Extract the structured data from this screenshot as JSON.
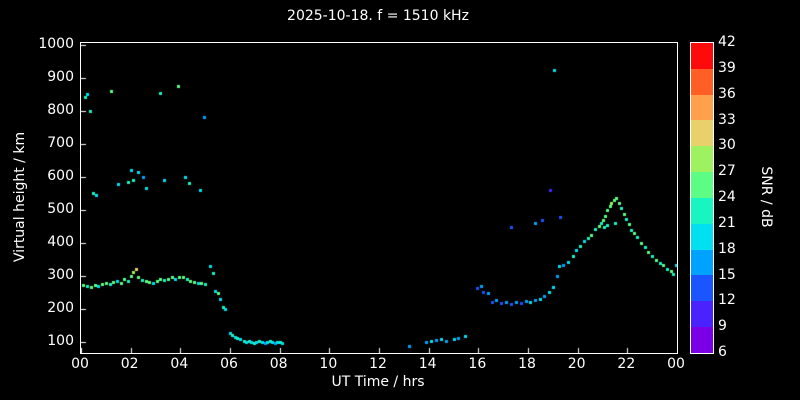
{
  "chart_data": {
    "type": "scatter",
    "title": "2025-10-18. f = 1510 kHz",
    "xlabel": "UT Time / hrs",
    "ylabel": "Virtual height / km",
    "colorbar_label": "SNR / dB",
    "xlim": [
      0,
      24
    ],
    "ylim": [
      66,
      1000
    ],
    "background": "#000000",
    "foreground": "#ffffff",
    "x_tick_values": [
      0,
      2,
      4,
      6,
      8,
      10,
      12,
      14,
      16,
      18,
      20,
      22,
      24
    ],
    "x_tick_labels": [
      "00",
      "02",
      "04",
      "06",
      "08",
      "10",
      "12",
      "14",
      "16",
      "18",
      "20",
      "22",
      "00"
    ],
    "y_tick_values": [
      100,
      200,
      300,
      400,
      500,
      600,
      700,
      800,
      900,
      1000
    ],
    "y_tick_labels": [
      "100",
      "200",
      "300",
      "400",
      "500",
      "600",
      "700",
      "800",
      "900",
      "1000"
    ],
    "colorbar": {
      "min": 6,
      "max": 42,
      "tick_values": [
        6,
        9,
        12,
        15,
        18,
        21,
        24,
        27,
        30,
        33,
        36,
        39,
        42
      ],
      "segment_colors": [
        "#7a00e6",
        "#4a22ff",
        "#1a55ff",
        "#00a2ff",
        "#00e0f0",
        "#17f5c0",
        "#5dfc84",
        "#9ef25f",
        "#e8d06a",
        "#ffa04d",
        "#ff5e24",
        "#ff0a0a"
      ]
    },
    "marker_size": 3,
    "points": [
      [
        0.1,
        272,
        24
      ],
      [
        0.25,
        270,
        21
      ],
      [
        0.4,
        268,
        24
      ],
      [
        0.55,
        274,
        24
      ],
      [
        0.7,
        270,
        19
      ],
      [
        0.85,
        276,
        24
      ],
      [
        1.0,
        280,
        24
      ],
      [
        1.15,
        276,
        21
      ],
      [
        1.3,
        282,
        24
      ],
      [
        1.45,
        284,
        19
      ],
      [
        1.6,
        280,
        24
      ],
      [
        1.75,
        290,
        24
      ],
      [
        1.9,
        286,
        21
      ],
      [
        2.0,
        300,
        24
      ],
      [
        2.1,
        312,
        27
      ],
      [
        2.2,
        322,
        31
      ],
      [
        2.3,
        296,
        24
      ],
      [
        2.45,
        288,
        21
      ],
      [
        2.6,
        284,
        24
      ],
      [
        2.75,
        282,
        24
      ],
      [
        2.9,
        280,
        19
      ],
      [
        3.05,
        286,
        24
      ],
      [
        3.2,
        290,
        24
      ],
      [
        3.35,
        288,
        21
      ],
      [
        3.5,
        292,
        24
      ],
      [
        3.65,
        296,
        24
      ],
      [
        3.8,
        290,
        19
      ],
      [
        3.95,
        298,
        24
      ],
      [
        4.1,
        296,
        24
      ],
      [
        4.25,
        290,
        21
      ],
      [
        4.4,
        286,
        24
      ],
      [
        4.55,
        282,
        24
      ],
      [
        4.7,
        280,
        19
      ],
      [
        4.85,
        278,
        24
      ],
      [
        5.0,
        276,
        21
      ],
      [
        5.2,
        330,
        19
      ],
      [
        5.3,
        308,
        21
      ],
      [
        5.4,
        256,
        19
      ],
      [
        5.5,
        250,
        24
      ],
      [
        5.6,
        230,
        19
      ],
      [
        5.7,
        205,
        21
      ],
      [
        5.8,
        200,
        19
      ],
      [
        6.0,
        128,
        19
      ],
      [
        6.1,
        122,
        21
      ],
      [
        6.2,
        116,
        19
      ],
      [
        6.3,
        112,
        21
      ],
      [
        6.4,
        108,
        19
      ],
      [
        6.55,
        104,
        21
      ],
      [
        6.65,
        100,
        19
      ],
      [
        6.75,
        102,
        21
      ],
      [
        6.85,
        100,
        19
      ],
      [
        6.95,
        98,
        21
      ],
      [
        7.05,
        100,
        19
      ],
      [
        7.15,
        102,
        21
      ],
      [
        7.3,
        100,
        19
      ],
      [
        7.4,
        98,
        15
      ],
      [
        7.5,
        100,
        19
      ],
      [
        7.6,
        102,
        21
      ],
      [
        7.7,
        100,
        19
      ],
      [
        7.8,
        98,
        15
      ],
      [
        7.9,
        100,
        19
      ],
      [
        8.0,
        100,
        21
      ],
      [
        8.1,
        98,
        19
      ],
      [
        13.2,
        88,
        15
      ],
      [
        13.9,
        100,
        15
      ],
      [
        14.1,
        102,
        18
      ],
      [
        14.3,
        106,
        15
      ],
      [
        14.5,
        108,
        18
      ],
      [
        14.7,
        104,
        15
      ],
      [
        15.0,
        110,
        18
      ],
      [
        15.2,
        112,
        15
      ],
      [
        15.45,
        118,
        18
      ],
      [
        15.95,
        265,
        12
      ],
      [
        16.1,
        270,
        15
      ],
      [
        16.2,
        252,
        12
      ],
      [
        16.4,
        248,
        15
      ],
      [
        16.55,
        222,
        12
      ],
      [
        16.7,
        226,
        15
      ],
      [
        16.9,
        218,
        12
      ],
      [
        17.1,
        220,
        15
      ],
      [
        17.3,
        216,
        12
      ],
      [
        17.5,
        222,
        15
      ],
      [
        17.7,
        218,
        12
      ],
      [
        17.9,
        224,
        15
      ],
      [
        18.1,
        220,
        18
      ],
      [
        18.3,
        228,
        15
      ],
      [
        18.5,
        230,
        18
      ],
      [
        18.65,
        240,
        15
      ],
      [
        18.85,
        252,
        18
      ],
      [
        17.3,
        450,
        12
      ],
      [
        18.3,
        462,
        15
      ],
      [
        18.55,
        470,
        12
      ],
      [
        18.9,
        560,
        9
      ],
      [
        19.05,
        925,
        18
      ],
      [
        19.3,
        480,
        12
      ],
      [
        19.0,
        268,
        18
      ],
      [
        19.15,
        300,
        15
      ],
      [
        19.25,
        330,
        18
      ],
      [
        19.4,
        334,
        15
      ],
      [
        19.6,
        342,
        18
      ],
      [
        19.8,
        360,
        21
      ],
      [
        19.95,
        378,
        18
      ],
      [
        20.1,
        392,
        21
      ],
      [
        20.25,
        405,
        18
      ],
      [
        20.4,
        415,
        21
      ],
      [
        20.55,
        425,
        24
      ],
      [
        20.7,
        442,
        21
      ],
      [
        20.85,
        452,
        24
      ],
      [
        20.95,
        462,
        21
      ],
      [
        21.0,
        470,
        24
      ],
      [
        21.05,
        450,
        21
      ],
      [
        21.1,
        482,
        24
      ],
      [
        21.2,
        455,
        21
      ],
      [
        21.2,
        500,
        24
      ],
      [
        21.3,
        512,
        24
      ],
      [
        21.35,
        522,
        27
      ],
      [
        21.45,
        530,
        24
      ],
      [
        21.5,
        460,
        21
      ],
      [
        21.55,
        535,
        24
      ],
      [
        21.65,
        520,
        24
      ],
      [
        21.75,
        505,
        21
      ],
      [
        21.85,
        488,
        24
      ],
      [
        21.95,
        472,
        21
      ],
      [
        22.05,
        458,
        24
      ],
      [
        22.15,
        440,
        21
      ],
      [
        22.25,
        430,
        24
      ],
      [
        22.4,
        418,
        21
      ],
      [
        22.55,
        400,
        24
      ],
      [
        22.7,
        388,
        21
      ],
      [
        22.85,
        374,
        24
      ],
      [
        23.0,
        360,
        21
      ],
      [
        23.15,
        350,
        24
      ],
      [
        23.3,
        340,
        21
      ],
      [
        23.45,
        332,
        24
      ],
      [
        23.6,
        322,
        21
      ],
      [
        23.75,
        314,
        24
      ],
      [
        23.85,
        306,
        21
      ],
      [
        23.95,
        334,
        19
      ],
      [
        0.15,
        842,
        21
      ],
      [
        0.25,
        852,
        19
      ],
      [
        0.35,
        800,
        21
      ],
      [
        0.5,
        552,
        21
      ],
      [
        0.6,
        546,
        19
      ],
      [
        1.2,
        860,
        24
      ],
      [
        1.5,
        580,
        19
      ],
      [
        1.9,
        586,
        21
      ],
      [
        2.0,
        620,
        19
      ],
      [
        2.1,
        592,
        21
      ],
      [
        2.3,
        614,
        19
      ],
      [
        2.5,
        600,
        15
      ],
      [
        2.6,
        566,
        19
      ],
      [
        3.2,
        856,
        21
      ],
      [
        3.35,
        590,
        19
      ],
      [
        3.9,
        876,
        24
      ],
      [
        4.2,
        600,
        19
      ],
      [
        4.35,
        582,
        21
      ],
      [
        4.8,
        562,
        19
      ],
      [
        4.95,
        782,
        15
      ]
    ]
  }
}
